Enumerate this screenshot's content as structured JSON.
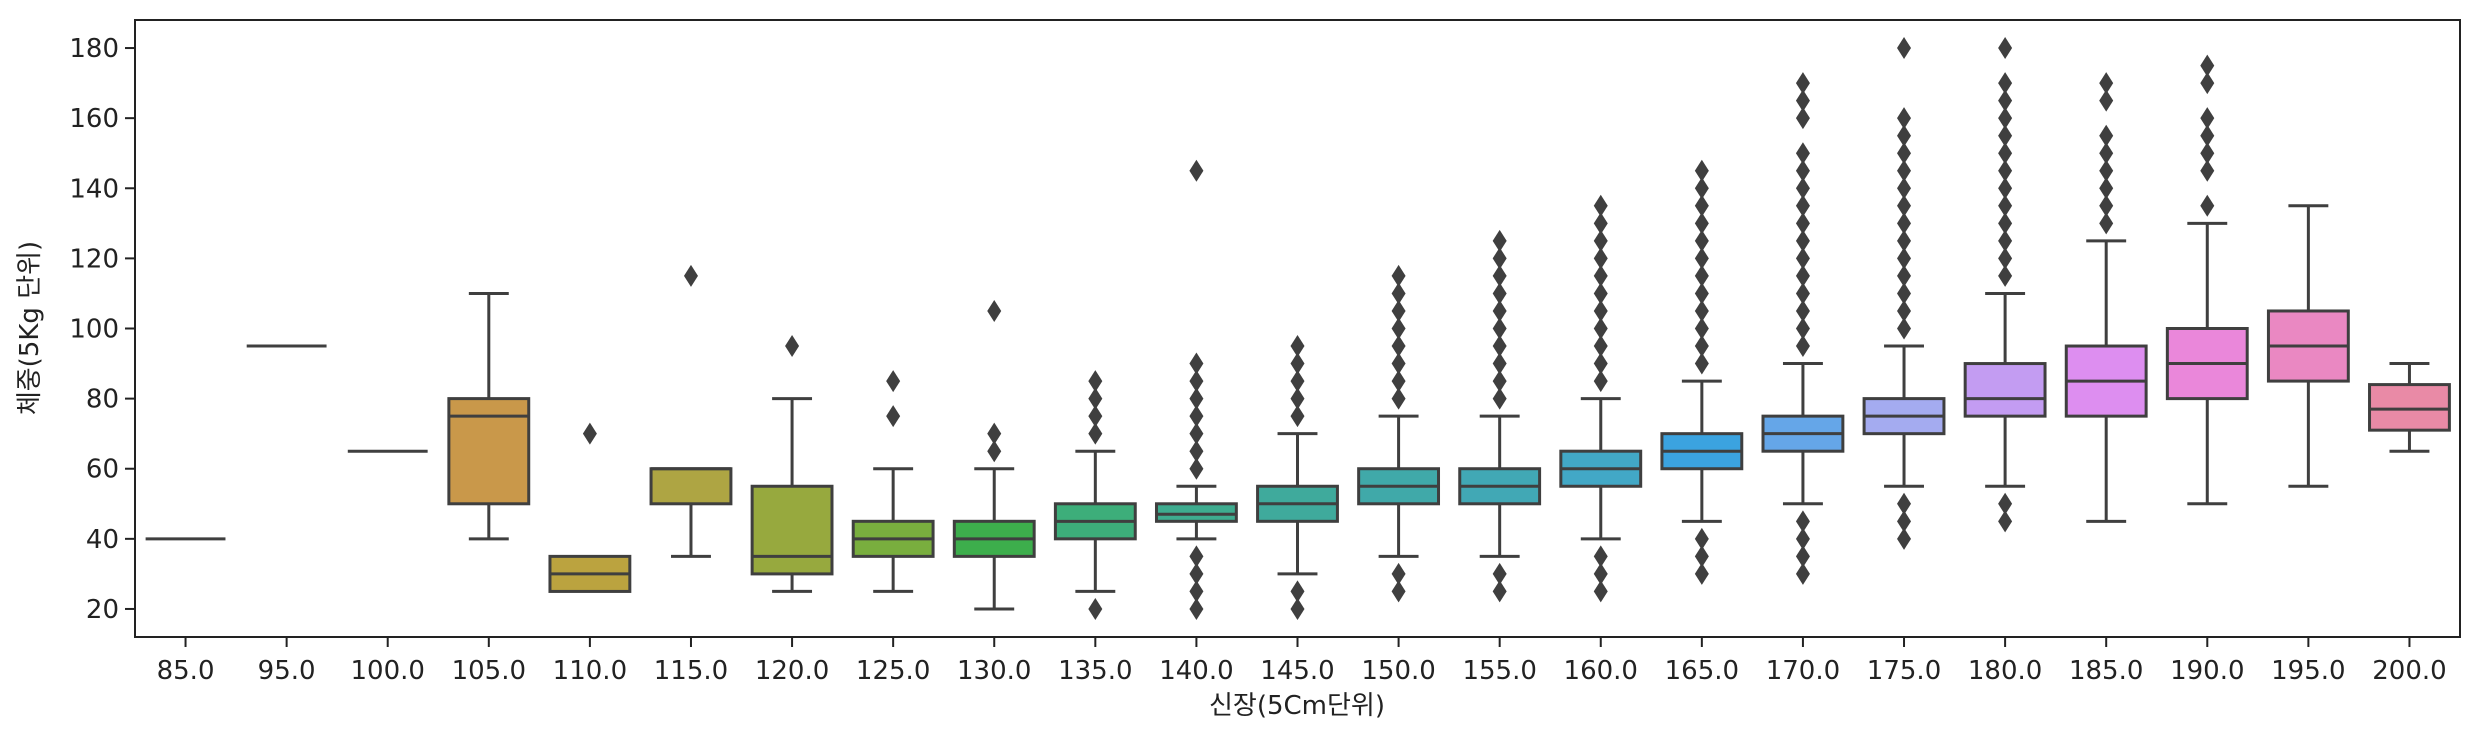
{
  "chart_data": {
    "type": "box",
    "title": "",
    "xlabel": "신장(5Cm단위)",
    "ylabel": "체중(5Kg 단위)",
    "ylim": [
      12,
      188
    ],
    "yticks": [
      20,
      40,
      60,
      80,
      100,
      120,
      140,
      160,
      180
    ],
    "grid": false,
    "legend": "none",
    "categories": [
      "85.0",
      "95.0",
      "100.0",
      "105.0",
      "110.0",
      "115.0",
      "120.0",
      "125.0",
      "130.0",
      "135.0",
      "140.0",
      "145.0",
      "150.0",
      "155.0",
      "160.0",
      "165.0",
      "170.0",
      "175.0",
      "180.0",
      "185.0",
      "190.0",
      "195.0",
      "200.0"
    ],
    "boxes": [
      {
        "category": "85.0",
        "q1": 40,
        "median": 40,
        "q3": 40,
        "whisker_low": 40,
        "whisker_high": 40,
        "color": "#e8716f",
        "outliers": []
      },
      {
        "category": "95.0",
        "q1": 95,
        "median": 95,
        "q3": 95,
        "whisker_low": 95,
        "whisker_high": 95,
        "color": "#dc7f4a",
        "outliers": []
      },
      {
        "category": "100.0",
        "q1": 65,
        "median": 65,
        "q3": 65,
        "whisker_low": 65,
        "whisker_high": 65,
        "color": "#d28b3c",
        "outliers": []
      },
      {
        "category": "105.0",
        "q1": 50,
        "median": 75,
        "q3": 80,
        "whisker_low": 40,
        "whisker_high": 110,
        "color": "#c9984a",
        "outliers": []
      },
      {
        "category": "110.0",
        "q1": 25,
        "median": 30,
        "q3": 35,
        "whisker_low": 25,
        "whisker_high": 35,
        "color": "#bba33f",
        "outliers": [
          70
        ]
      },
      {
        "category": "115.0",
        "q1": 50,
        "median": 60,
        "q3": 60,
        "whisker_low": 35,
        "whisker_high": 60,
        "color": "#aea543",
        "outliers": [
          115
        ]
      },
      {
        "category": "120.0",
        "q1": 30,
        "median": 35,
        "q3": 55,
        "whisker_low": 25,
        "whisker_high": 80,
        "color": "#97a93e",
        "outliers": [
          95
        ]
      },
      {
        "category": "125.0",
        "q1": 35,
        "median": 40,
        "q3": 45,
        "whisker_low": 25,
        "whisker_high": 60,
        "color": "#79ae3e",
        "outliers": [
          75,
          85
        ]
      },
      {
        "category": "130.0",
        "q1": 35,
        "median": 40,
        "q3": 45,
        "whisker_low": 20,
        "whisker_high": 60,
        "color": "#3dae4c",
        "outliers": [
          65,
          70,
          105
        ]
      },
      {
        "category": "135.0",
        "q1": 40,
        "median": 45,
        "q3": 50,
        "whisker_low": 25,
        "whisker_high": 65,
        "color": "#3dae7a",
        "outliers": [
          20,
          70,
          75,
          80,
          85
        ]
      },
      {
        "category": "140.0",
        "q1": 45,
        "median": 47,
        "q3": 50,
        "whisker_low": 40,
        "whisker_high": 55,
        "color": "#3eac8f",
        "outliers": [
          20,
          25,
          30,
          35,
          60,
          65,
          70,
          75,
          80,
          85,
          90,
          145
        ]
      },
      {
        "category": "145.0",
        "q1": 45,
        "median": 50,
        "q3": 55,
        "whisker_low": 30,
        "whisker_high": 70,
        "color": "#3faa9c",
        "outliers": [
          20,
          25,
          75,
          80,
          85,
          90,
          95
        ]
      },
      {
        "category": "150.0",
        "q1": 50,
        "median": 55,
        "q3": 60,
        "whisker_low": 35,
        "whisker_high": 75,
        "color": "#40a9a9",
        "outliers": [
          25,
          30,
          80,
          85,
          90,
          95,
          100,
          105,
          110,
          115
        ]
      },
      {
        "category": "155.0",
        "q1": 50,
        "median": 55,
        "q3": 60,
        "whisker_low": 35,
        "whisker_high": 75,
        "color": "#41a8b5",
        "outliers": [
          25,
          30,
          80,
          85,
          90,
          95,
          100,
          105,
          110,
          115,
          120,
          125
        ]
      },
      {
        "category": "160.0",
        "q1": 55,
        "median": 60,
        "q3": 65,
        "whisker_low": 40,
        "whisker_high": 80,
        "color": "#42a8c6",
        "outliers": [
          25,
          30,
          35,
          85,
          90,
          95,
          100,
          105,
          110,
          115,
          120,
          125,
          130,
          135
        ]
      },
      {
        "category": "165.0",
        "q1": 60,
        "median": 65,
        "q3": 70,
        "whisker_low": 45,
        "whisker_high": 85,
        "color": "#3ba3e0",
        "outliers": [
          30,
          35,
          40,
          90,
          95,
          100,
          105,
          110,
          115,
          120,
          125,
          130,
          135,
          140,
          145
        ]
      },
      {
        "category": "170.0",
        "q1": 65,
        "median": 70,
        "q3": 75,
        "whisker_low": 50,
        "whisker_high": 90,
        "color": "#65a6e8",
        "outliers": [
          30,
          35,
          40,
          45,
          95,
          100,
          105,
          110,
          115,
          120,
          125,
          130,
          135,
          140,
          145,
          150,
          160,
          165,
          170
        ]
      },
      {
        "category": "175.0",
        "q1": 70,
        "median": 75,
        "q3": 80,
        "whisker_low": 55,
        "whisker_high": 95,
        "color": "#a4abf0",
        "outliers": [
          40,
          45,
          50,
          100,
          105,
          110,
          115,
          120,
          125,
          130,
          135,
          140,
          145,
          150,
          155,
          160,
          180
        ]
      },
      {
        "category": "180.0",
        "q1": 75,
        "median": 80,
        "q3": 90,
        "whisker_low": 55,
        "whisker_high": 110,
        "color": "#c39cf2",
        "outliers": [
          45,
          50,
          115,
          120,
          125,
          130,
          135,
          140,
          145,
          150,
          155,
          160,
          165,
          170,
          180
        ]
      },
      {
        "category": "185.0",
        "q1": 75,
        "median": 85,
        "q3": 95,
        "whisker_low": 45,
        "whisker_high": 125,
        "color": "#dd8ef0",
        "outliers": [
          130,
          135,
          140,
          145,
          150,
          155,
          165,
          170
        ]
      },
      {
        "category": "190.0",
        "q1": 80,
        "median": 90,
        "q3": 100,
        "whisker_low": 50,
        "whisker_high": 130,
        "color": "#ea87da",
        "outliers": [
          135,
          145,
          150,
          155,
          160,
          170,
          175
        ]
      },
      {
        "category": "195.0",
        "q1": 85,
        "median": 95,
        "q3": 105,
        "whisker_low": 55,
        "whisker_high": 135,
        "color": "#ea88c2",
        "outliers": []
      },
      {
        "category": "200.0",
        "q1": 71,
        "median": 77,
        "q3": 84,
        "whisker_low": 65,
        "whisker_high": 90,
        "color": "#e98aa6",
        "outliers": []
      }
    ]
  }
}
